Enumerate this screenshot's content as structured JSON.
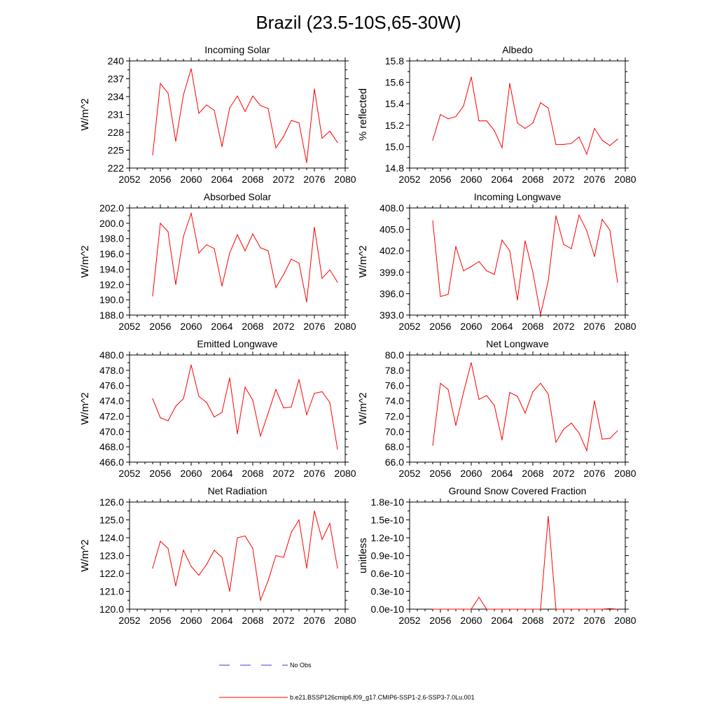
{
  "figure": {
    "title": "Brazil (23.5-10S,65-30W)"
  },
  "legend": {
    "items": [
      {
        "label": "No Obs",
        "color": "#3a3ad0",
        "dash": true
      },
      {
        "label": "b.e21.BSSP126cmip6.f09_g17.CMIP6-SSP1-2.6-SSP3-7.0Lu.001",
        "color": "#ff0000",
        "dash": false
      }
    ]
  },
  "chart_data": [
    {
      "type": "line",
      "title": "Incoming Solar",
      "ylabel": "W/m^2",
      "xlim": [
        2052,
        2080
      ],
      "xticks": [
        2052,
        2056,
        2060,
        2064,
        2068,
        2072,
        2076,
        2080
      ],
      "xtick_labels": [
        "2052",
        "2056",
        "2060",
        "2064",
        "2068",
        "2072",
        "2076",
        "2080"
      ],
      "ylim": [
        222,
        240
      ],
      "yticks": [
        222,
        225,
        228,
        231,
        234,
        237,
        240
      ],
      "ytick_labels": [
        "222",
        "225",
        "228",
        "231",
        "234",
        "237",
        "240"
      ],
      "x": [
        2055,
        2056,
        2057,
        2058,
        2059,
        2060,
        2061,
        2062,
        2063,
        2064,
        2065,
        2066,
        2067,
        2068,
        2069,
        2070,
        2071,
        2072,
        2073,
        2074,
        2075,
        2076,
        2077,
        2078,
        2079
      ],
      "series": [
        {
          "name": "b.e21.BSSP126cmip6.f09_g17.CMIP6-SSP1-2.6-SSP3-7.0Lu.001",
          "color": "#ff0000",
          "values": [
            224.2,
            236.2,
            234.6,
            226.5,
            234.3,
            238.7,
            231.2,
            232.6,
            231.7,
            225.6,
            232.1,
            234.1,
            231.5,
            234.1,
            232.5,
            232.0,
            225.4,
            227.3,
            230.0,
            229.6,
            222.9,
            235.3,
            227.0,
            228.2,
            226.3
          ]
        }
      ]
    },
    {
      "type": "line",
      "title": "Albedo",
      "ylabel": "% reflected",
      "xlim": [
        2052,
        2080
      ],
      "xticks": [
        2052,
        2056,
        2060,
        2064,
        2068,
        2072,
        2076,
        2080
      ],
      "xtick_labels": [
        "2052",
        "2056",
        "2060",
        "2064",
        "2068",
        "2072",
        "2076",
        "2080"
      ],
      "ylim": [
        14.8,
        15.8
      ],
      "yticks": [
        14.8,
        15.0,
        15.2,
        15.4,
        15.6,
        15.8
      ],
      "ytick_labels": [
        "14.8",
        "15.0",
        "15.2",
        "15.4",
        "15.6",
        "15.8"
      ],
      "x": [
        2055,
        2056,
        2057,
        2058,
        2059,
        2060,
        2061,
        2062,
        2063,
        2064,
        2065,
        2066,
        2067,
        2068,
        2069,
        2070,
        2071,
        2072,
        2073,
        2074,
        2075,
        2076,
        2077,
        2078,
        2079
      ],
      "series": [
        {
          "name": "b.e21.BSSP126cmip6.f09_g17.CMIP6-SSP1-2.6-SSP3-7.0Lu.001",
          "color": "#ff0000",
          "values": [
            15.06,
            15.3,
            15.26,
            15.28,
            15.38,
            15.65,
            15.24,
            15.24,
            15.15,
            14.99,
            15.59,
            15.22,
            15.17,
            15.22,
            15.41,
            15.36,
            15.02,
            15.02,
            15.03,
            15.09,
            14.93,
            15.17,
            15.06,
            15.01,
            15.07
          ]
        }
      ]
    },
    {
      "type": "line",
      "title": "Absorbed Solar",
      "ylabel": "W/m^2",
      "xlim": [
        2052,
        2080
      ],
      "xticks": [
        2052,
        2056,
        2060,
        2064,
        2068,
        2072,
        2076,
        2080
      ],
      "xtick_labels": [
        "2052",
        "2056",
        "2060",
        "2064",
        "2068",
        "2072",
        "2076",
        "2080"
      ],
      "ylim": [
        188.0,
        202.0
      ],
      "yticks": [
        188,
        190,
        192,
        194,
        196,
        198,
        200,
        202
      ],
      "ytick_labels": [
        "188.0",
        "190.0",
        "192.0",
        "194.0",
        "196.0",
        "198.0",
        "200.0",
        "202.0"
      ],
      "x": [
        2055,
        2056,
        2057,
        2058,
        2059,
        2060,
        2061,
        2062,
        2063,
        2064,
        2065,
        2066,
        2067,
        2068,
        2069,
        2070,
        2071,
        2072,
        2073,
        2074,
        2075,
        2076,
        2077,
        2078,
        2079
      ],
      "series": [
        {
          "name": "b.e21.BSSP126cmip6.f09_g17.CMIP6-SSP1-2.6-SSP3-7.0Lu.001",
          "color": "#ff0000",
          "values": [
            190.5,
            200.0,
            198.9,
            192.0,
            198.3,
            201.3,
            196.1,
            197.2,
            196.7,
            191.8,
            196.1,
            198.5,
            196.4,
            198.6,
            196.8,
            196.4,
            191.6,
            193.3,
            195.3,
            194.8,
            189.7,
            199.5,
            192.8,
            193.9,
            192.3
          ]
        }
      ]
    },
    {
      "type": "line",
      "title": "Incoming Longwave",
      "ylabel": "W/m^2",
      "xlim": [
        2052,
        2080
      ],
      "xticks": [
        2052,
        2056,
        2060,
        2064,
        2068,
        2072,
        2076,
        2080
      ],
      "xtick_labels": [
        "2052",
        "2056",
        "2060",
        "2064",
        "2068",
        "2072",
        "2076",
        "2080"
      ],
      "ylim": [
        393.0,
        408.0
      ],
      "yticks": [
        393,
        396,
        399,
        402,
        405,
        408
      ],
      "ytick_labels": [
        "393.0",
        "396.0",
        "399.0",
        "402.0",
        "405.0",
        "408.0"
      ],
      "x": [
        2055,
        2056,
        2057,
        2058,
        2059,
        2060,
        2061,
        2062,
        2063,
        2064,
        2065,
        2066,
        2067,
        2068,
        2069,
        2070,
        2071,
        2072,
        2073,
        2074,
        2075,
        2076,
        2077,
        2078,
        2079
      ],
      "series": [
        {
          "name": "b.e21.BSSP126cmip6.f09_g17.CMIP6-SSP1-2.6-SSP3-7.0Lu.001",
          "color": "#ff0000",
          "values": [
            406.2,
            395.6,
            395.9,
            402.6,
            399.2,
            399.8,
            400.5,
            399.2,
            398.7,
            403.5,
            402.0,
            395.1,
            403.4,
            399.0,
            393.1,
            397.8,
            406.9,
            402.9,
            402.3,
            407.0,
            404.8,
            401.2,
            406.4,
            404.9,
            397.6
          ]
        }
      ]
    },
    {
      "type": "line",
      "title": "Emitted Longwave",
      "ylabel": "W/m^2",
      "xlim": [
        2052,
        2080
      ],
      "xticks": [
        2052,
        2056,
        2060,
        2064,
        2068,
        2072,
        2076,
        2080
      ],
      "xtick_labels": [
        "2052",
        "2056",
        "2060",
        "2064",
        "2068",
        "2072",
        "2076",
        "2080"
      ],
      "ylim": [
        466.0,
        480.0
      ],
      "yticks": [
        466,
        468,
        470,
        472,
        474,
        476,
        478,
        480
      ],
      "ytick_labels": [
        "466.0",
        "468.0",
        "470.0",
        "472.0",
        "474.0",
        "476.0",
        "478.0",
        "480.0"
      ],
      "x": [
        2055,
        2056,
        2057,
        2058,
        2059,
        2060,
        2061,
        2062,
        2063,
        2064,
        2065,
        2066,
        2067,
        2068,
        2069,
        2070,
        2071,
        2072,
        2073,
        2074,
        2075,
        2076,
        2077,
        2078,
        2079
      ],
      "series": [
        {
          "name": "b.e21.BSSP126cmip6.f09_g17.CMIP6-SSP1-2.6-SSP3-7.0Lu.001",
          "color": "#ff0000",
          "values": [
            474.3,
            471.8,
            471.4,
            473.3,
            474.3,
            478.7,
            474.6,
            473.8,
            471.9,
            472.5,
            477.0,
            469.7,
            475.8,
            474.1,
            469.4,
            472.4,
            475.5,
            473.1,
            473.2,
            476.8,
            472.2,
            475.0,
            475.2,
            473.8,
            467.7
          ]
        }
      ]
    },
    {
      "type": "line",
      "title": "Net Longwave",
      "ylabel": "W/m^2",
      "xlim": [
        2052,
        2080
      ],
      "xticks": [
        2052,
        2056,
        2060,
        2064,
        2068,
        2072,
        2076,
        2080
      ],
      "xtick_labels": [
        "2052",
        "2056",
        "2060",
        "2064",
        "2068",
        "2072",
        "2076",
        "2080"
      ],
      "ylim": [
        66.0,
        80.0
      ],
      "yticks": [
        66,
        68,
        70,
        72,
        74,
        76,
        78,
        80
      ],
      "ytick_labels": [
        "66.0",
        "68.0",
        "70.0",
        "72.0",
        "74.0",
        "76.0",
        "78.0",
        "80.0"
      ],
      "x": [
        2055,
        2056,
        2057,
        2058,
        2059,
        2060,
        2061,
        2062,
        2063,
        2064,
        2065,
        2066,
        2067,
        2068,
        2069,
        2070,
        2071,
        2072,
        2073,
        2074,
        2075,
        2076,
        2077,
        2078,
        2079
      ],
      "series": [
        {
          "name": "b.e21.BSSP126cmip6.f09_g17.CMIP6-SSP1-2.6-SSP3-7.0Lu.001",
          "color": "#ff0000",
          "values": [
            68.2,
            76.3,
            75.5,
            70.8,
            75.1,
            79.0,
            74.2,
            74.7,
            73.4,
            68.9,
            75.1,
            74.6,
            72.4,
            75.2,
            76.3,
            74.9,
            68.6,
            70.3,
            71.1,
            69.8,
            67.5,
            74.0,
            69.0,
            69.1,
            70.1
          ]
        }
      ]
    },
    {
      "type": "line",
      "title": "Net Radiation",
      "ylabel": "W/m^2",
      "xlim": [
        2052,
        2080
      ],
      "xticks": [
        2052,
        2056,
        2060,
        2064,
        2068,
        2072,
        2076,
        2080
      ],
      "xtick_labels": [
        "2052",
        "2056",
        "2060",
        "2064",
        "2068",
        "2072",
        "2076",
        "2080"
      ],
      "ylim": [
        120.0,
        126.0
      ],
      "yticks": [
        120,
        121,
        122,
        123,
        124,
        125,
        126
      ],
      "ytick_labels": [
        "120.0",
        "121.0",
        "122.0",
        "123.0",
        "124.0",
        "125.0",
        "126.0"
      ],
      "x": [
        2055,
        2056,
        2057,
        2058,
        2059,
        2060,
        2061,
        2062,
        2063,
        2064,
        2065,
        2066,
        2067,
        2068,
        2069,
        2070,
        2071,
        2072,
        2073,
        2074,
        2075,
        2076,
        2077,
        2078,
        2079
      ],
      "series": [
        {
          "name": "b.e21.BSSP126cmip6.f09_g17.CMIP6-SSP1-2.6-SSP3-7.0Lu.001",
          "color": "#ff0000",
          "values": [
            122.3,
            123.8,
            123.4,
            121.3,
            123.3,
            122.4,
            121.9,
            122.5,
            123.3,
            122.9,
            121.0,
            124.0,
            124.1,
            123.4,
            120.5,
            121.6,
            123.0,
            122.9,
            124.3,
            125.0,
            122.3,
            125.5,
            123.9,
            124.8,
            122.3
          ]
        }
      ]
    },
    {
      "type": "line",
      "title": "Ground Snow Covered Fraction",
      "ylabel": "unitless",
      "xlim": [
        2052,
        2080
      ],
      "xticks": [
        2052,
        2056,
        2060,
        2064,
        2068,
        2072,
        2076,
        2080
      ],
      "xtick_labels": [
        "2052",
        "2056",
        "2060",
        "2064",
        "2068",
        "2072",
        "2076",
        "2080"
      ],
      "ylim": [
        0,
        1.8e-10
      ],
      "yticks": [
        0,
        3e-11,
        6e-11,
        9e-11,
        1.2e-10,
        1.5e-10,
        1.8e-10
      ],
      "ytick_labels": [
        "0.0e-10",
        "0.3e-10",
        "0.6e-10",
        "0.9e-10",
        "1.2e-10",
        "1.5e-10",
        "1.8e-10"
      ],
      "x": [
        2055,
        2056,
        2057,
        2058,
        2059,
        2060,
        2061,
        2062,
        2063,
        2064,
        2065,
        2066,
        2067,
        2068,
        2069,
        2070,
        2071,
        2072,
        2073,
        2074,
        2075,
        2076,
        2077,
        2078,
        2079
      ],
      "series": [
        {
          "name": "b.e21.BSSP126cmip6.f09_g17.CMIP6-SSP1-2.6-SSP3-7.0Lu.001",
          "color": "#ff0000",
          "values": [
            0,
            0,
            0,
            0,
            0,
            0,
            2e-11,
            0,
            0,
            0,
            0,
            0,
            0,
            0,
            0,
            1.56e-10,
            0,
            0,
            0,
            0,
            0,
            0,
            0,
            1e-12,
            0
          ]
        }
      ]
    }
  ]
}
